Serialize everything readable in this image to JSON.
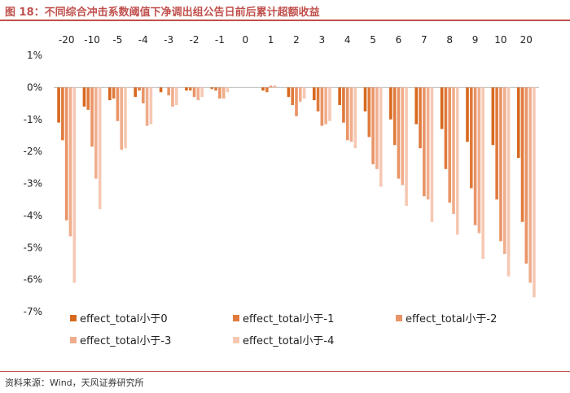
{
  "title": "图 18：不同综合冲击系数阈值下净调出组公告日前后累计超额收益",
  "source": "资料来源：Wind，天风证券研究所",
  "colors": [
    "#d7681e",
    "#e07a3c",
    "#e99466",
    "#f0ad8c",
    "#f6c8b3"
  ],
  "chart_data": {
    "type": "bar",
    "categories": [
      "-20",
      "-10",
      "-5",
      "-4",
      "-3",
      "-2",
      "-1",
      "0",
      "1",
      "2",
      "3",
      "4",
      "5",
      "6",
      "7",
      "8",
      "9",
      "10",
      "20"
    ],
    "ylim": [
      -7,
      1
    ],
    "yticks": [
      1,
      0,
      -1,
      -2,
      -3,
      -4,
      -5,
      -6,
      -7
    ],
    "ytick_labels": [
      "1%",
      "0%",
      "-1%",
      "-2%",
      "-3%",
      "-4%",
      "-5%",
      "-6%",
      "-7%"
    ],
    "grid": false,
    "legend_position": "bottom",
    "series": [
      {
        "name": "effect_total小于0",
        "values": [
          -1.1,
          -0.6,
          -0.4,
          -0.3,
          -0.15,
          -0.1,
          -0.05,
          0.0,
          -0.1,
          -0.3,
          -0.4,
          -0.55,
          -0.75,
          -1.0,
          -1.15,
          -1.3,
          -1.7,
          -1.8,
          -2.2
        ]
      },
      {
        "name": "effect_total小于-1",
        "values": [
          -1.65,
          -0.7,
          -0.35,
          -0.1,
          0.0,
          -0.1,
          -0.1,
          0.0,
          -0.15,
          -0.55,
          -0.75,
          -1.1,
          -1.55,
          -1.8,
          -1.9,
          -2.55,
          -3.15,
          -3.5,
          -4.2
        ]
      },
      {
        "name": "effect_total小于-2",
        "values": [
          -4.15,
          -1.85,
          -1.05,
          -0.5,
          -0.25,
          -0.3,
          -0.35,
          0.0,
          0.05,
          -0.9,
          -1.2,
          -1.65,
          -2.4,
          -2.85,
          -3.4,
          -3.6,
          -4.3,
          -4.8,
          -5.5
        ]
      },
      {
        "name": "effect_total小于-3",
        "values": [
          -4.65,
          -2.85,
          -1.95,
          -1.2,
          -0.6,
          -0.4,
          -0.35,
          0.0,
          0.05,
          -0.45,
          -1.15,
          -1.7,
          -2.55,
          -3.05,
          -3.5,
          -3.95,
          -4.55,
          -5.2,
          -6.1
        ]
      },
      {
        "name": "effect_total小于-4",
        "values": [
          -6.1,
          -3.8,
          -1.9,
          -1.15,
          -0.55,
          -0.3,
          -0.15,
          0.0,
          0.0,
          -0.35,
          -1.05,
          -1.9,
          -3.1,
          -3.7,
          -4.2,
          -4.6,
          -5.35,
          -5.9,
          -6.55
        ]
      }
    ]
  }
}
